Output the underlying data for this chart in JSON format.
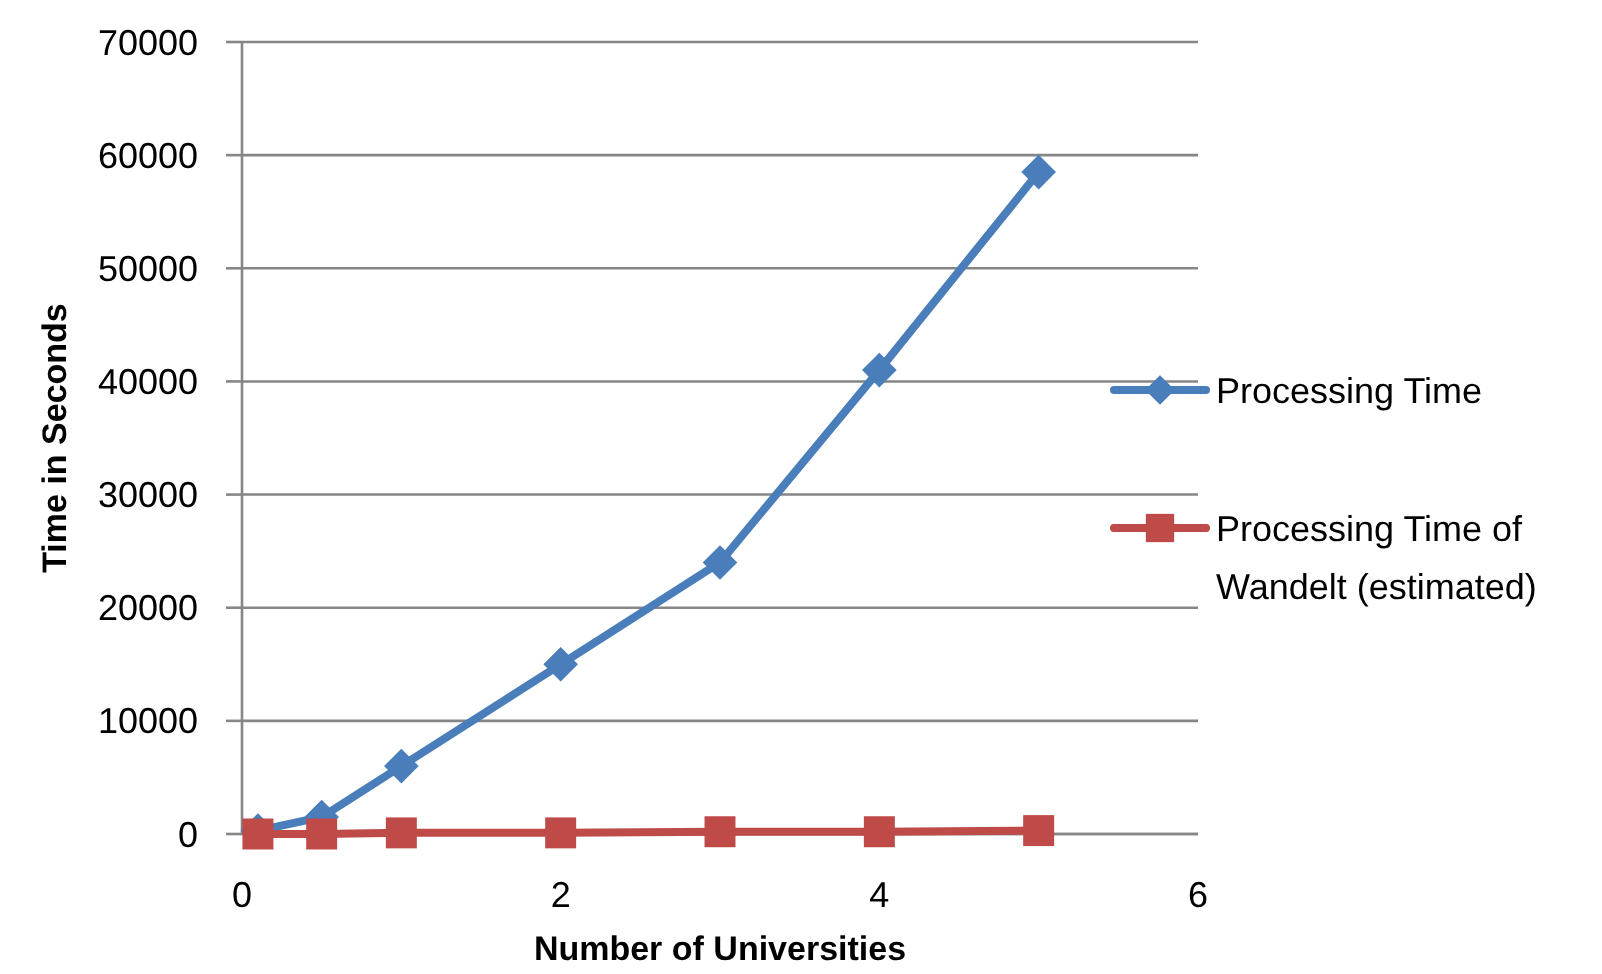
{
  "chart_data": {
    "type": "line",
    "xlabel": "Number of Universities",
    "ylabel": "Time in Seconds",
    "xlim": [
      0,
      6
    ],
    "xticks": [
      0,
      2,
      4,
      6
    ],
    "ylim": [
      0,
      70000
    ],
    "yticks": [
      0,
      10000,
      20000,
      30000,
      40000,
      50000,
      60000,
      70000
    ],
    "grid": "y",
    "legend": "right",
    "line_style": "solid",
    "x": [
      0.1,
      0.5,
      1,
      2,
      3,
      4,
      5
    ],
    "series": [
      {
        "name": "Processing Time",
        "color": "#4a7ebb",
        "marker": "diamond",
        "values": [
          300,
          1500,
          6000,
          15000,
          24000,
          41000,
          58500
        ]
      },
      {
        "name": "Processing Time of Wandelt (estimated)",
        "color": "#be4b48",
        "marker": "square",
        "values": [
          0,
          0,
          100,
          100,
          200,
          200,
          300
        ]
      }
    ]
  }
}
